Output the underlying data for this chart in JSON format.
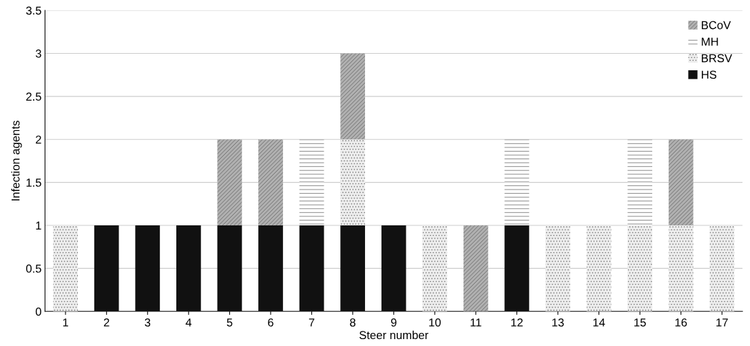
{
  "chart_data": {
    "type": "bar",
    "stacked": true,
    "xlabel": "Steer number",
    "ylabel": "Infection agents",
    "categories": [
      "1",
      "2",
      "3",
      "4",
      "5",
      "6",
      "7",
      "8",
      "9",
      "10",
      "11",
      "12",
      "13",
      "14",
      "15",
      "16",
      "17"
    ],
    "series": [
      {
        "name": "HS",
        "color": "#111111",
        "values": [
          null,
          1,
          1,
          1,
          1,
          1,
          1,
          1,
          1,
          null,
          null,
          1,
          null,
          null,
          null,
          null,
          null
        ]
      },
      {
        "name": "BRSV",
        "color": "#ececec",
        "values": [
          1,
          null,
          null,
          null,
          null,
          null,
          null,
          1,
          null,
          1,
          null,
          null,
          1,
          1,
          1,
          1,
          1
        ]
      },
      {
        "name": "MH",
        "color": "#ffffff",
        "values": [
          null,
          null,
          null,
          null,
          null,
          null,
          1,
          null,
          null,
          null,
          null,
          1,
          null,
          null,
          1,
          null,
          null
        ]
      },
      {
        "name": "BCoV",
        "color": "#b0b0b0",
        "values": [
          null,
          null,
          null,
          null,
          1,
          1,
          null,
          1,
          null,
          null,
          1,
          null,
          null,
          null,
          null,
          1,
          null
        ]
      }
    ],
    "ylim": [
      0,
      3.5
    ],
    "yticks": [
      0,
      0.5,
      1,
      1.5,
      2,
      2.5,
      3,
      3.5
    ],
    "grid": "y",
    "legend": "top right"
  }
}
